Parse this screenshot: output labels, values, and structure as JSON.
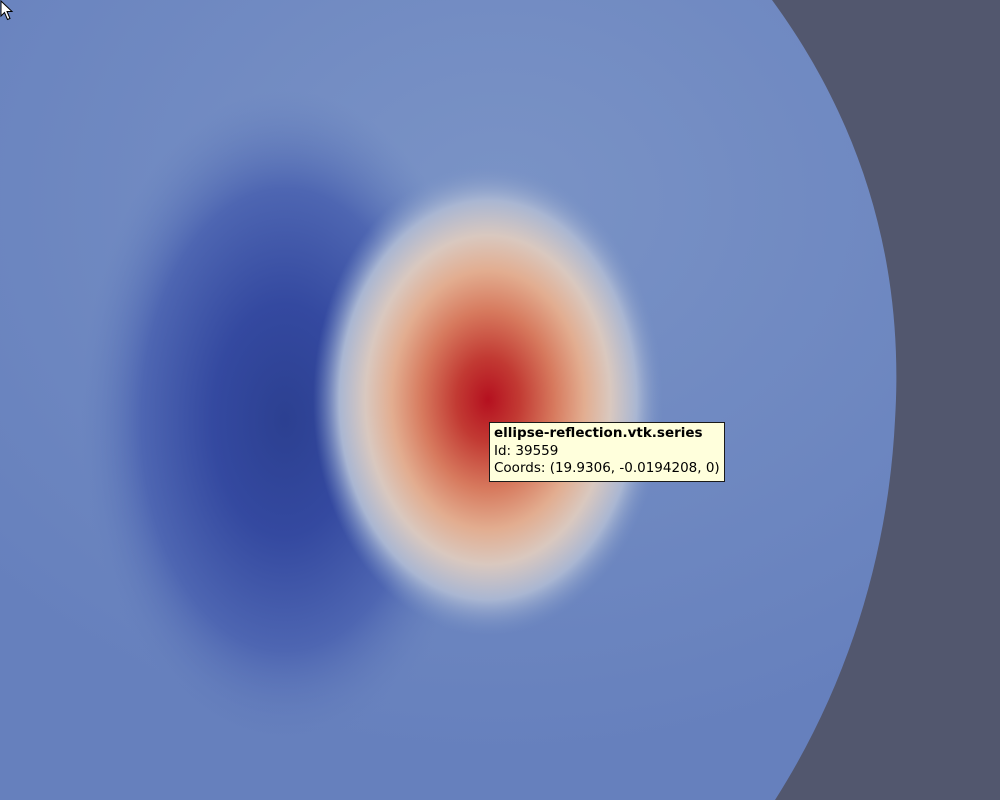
{
  "view": {
    "background_color": "#52576e",
    "colormap": "Cool to Warm",
    "colors": {
      "base": "#6a83bd",
      "low": "#2f4593",
      "high": "#b40b21"
    }
  },
  "tooltip": {
    "title": "ellipse-reflection.vtk.series",
    "id_line": "Id: 39559",
    "coords_line": "Coords: (19.9306, -0.0194208, 0)"
  },
  "cursor": {
    "icon": "arrow-pointer-icon"
  }
}
